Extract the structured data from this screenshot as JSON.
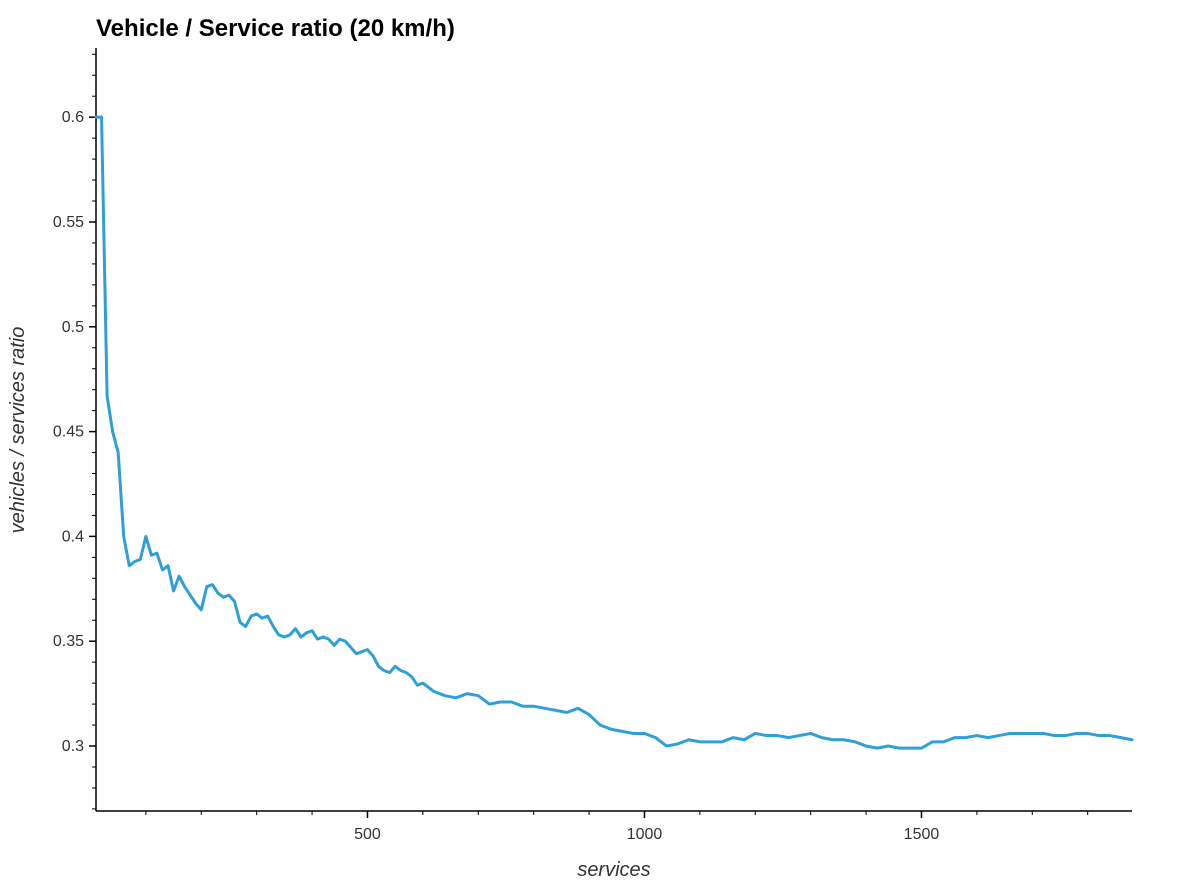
{
  "chart_data": {
    "type": "line",
    "title": "Vehicle / Service ratio (20 km/h)",
    "xlabel": "services",
    "ylabel": "vehicles / services ratio",
    "xlim": [
      10,
      1880
    ],
    "ylim": [
      0.269,
      0.633
    ],
    "xticks": [
      500,
      1000,
      1500
    ],
    "xtick_labels": [
      "500",
      "1000",
      "1500"
    ],
    "xminor": [
      100,
      200,
      300,
      400,
      600,
      700,
      800,
      900,
      1100,
      1200,
      1300,
      1400,
      1600,
      1700,
      1800
    ],
    "yticks": [
      0.3,
      0.35,
      0.4,
      0.45,
      0.5,
      0.55,
      0.6
    ],
    "ytick_labels": [
      "0.3",
      "0.35",
      "0.4",
      "0.45",
      "0.5",
      "0.55",
      "0.6"
    ],
    "yminor": [
      0.27,
      0.28,
      0.29,
      0.31,
      0.32,
      0.33,
      0.34,
      0.36,
      0.37,
      0.38,
      0.39,
      0.41,
      0.42,
      0.43,
      0.44,
      0.46,
      0.47,
      0.48,
      0.49,
      0.51,
      0.52,
      0.53,
      0.54,
      0.56,
      0.57,
      0.58,
      0.59,
      0.61,
      0.62,
      0.63
    ],
    "grid": false,
    "series": [
      {
        "color": "#2e9fd8",
        "x": [
          10,
          20,
          30,
          40,
          50,
          60,
          70,
          80,
          90,
          100,
          110,
          120,
          130,
          140,
          150,
          160,
          170,
          180,
          190,
          200,
          210,
          220,
          230,
          240,
          250,
          260,
          270,
          280,
          290,
          300,
          310,
          320,
          330,
          340,
          350,
          360,
          370,
          380,
          390,
          400,
          410,
          420,
          430,
          440,
          450,
          460,
          470,
          480,
          490,
          500,
          510,
          520,
          530,
          540,
          550,
          560,
          570,
          580,
          590,
          600,
          620,
          640,
          660,
          680,
          700,
          720,
          740,
          760,
          780,
          800,
          820,
          840,
          860,
          880,
          900,
          920,
          940,
          960,
          980,
          1000,
          1020,
          1040,
          1060,
          1080,
          1100,
          1120,
          1140,
          1160,
          1180,
          1200,
          1220,
          1240,
          1260,
          1280,
          1300,
          1320,
          1340,
          1360,
          1380,
          1400,
          1420,
          1440,
          1460,
          1480,
          1500,
          1520,
          1540,
          1560,
          1580,
          1600,
          1620,
          1640,
          1660,
          1680,
          1700,
          1720,
          1740,
          1760,
          1780,
          1800,
          1820,
          1840,
          1860,
          1880
        ],
        "y": [
          0.6,
          0.6,
          0.467,
          0.45,
          0.44,
          0.4,
          0.386,
          0.388,
          0.389,
          0.4,
          0.391,
          0.392,
          0.384,
          0.386,
          0.374,
          0.381,
          0.376,
          0.372,
          0.368,
          0.365,
          0.376,
          0.377,
          0.373,
          0.371,
          0.372,
          0.369,
          0.359,
          0.357,
          0.362,
          0.363,
          0.361,
          0.362,
          0.357,
          0.353,
          0.352,
          0.353,
          0.356,
          0.352,
          0.354,
          0.355,
          0.351,
          0.352,
          0.351,
          0.348,
          0.351,
          0.35,
          0.347,
          0.344,
          0.345,
          0.346,
          0.343,
          0.338,
          0.336,
          0.335,
          0.338,
          0.336,
          0.335,
          0.333,
          0.329,
          0.33,
          0.326,
          0.324,
          0.323,
          0.325,
          0.324,
          0.32,
          0.321,
          0.321,
          0.319,
          0.319,
          0.318,
          0.317,
          0.316,
          0.318,
          0.315,
          0.31,
          0.308,
          0.307,
          0.306,
          0.306,
          0.304,
          0.3,
          0.301,
          0.303,
          0.302,
          0.302,
          0.302,
          0.304,
          0.303,
          0.306,
          0.305,
          0.305,
          0.304,
          0.305,
          0.306,
          0.304,
          0.303,
          0.303,
          0.302,
          0.3,
          0.299,
          0.3,
          0.299,
          0.299,
          0.299,
          0.302,
          0.302,
          0.304,
          0.304,
          0.305,
          0.304,
          0.305,
          0.306,
          0.306,
          0.306,
          0.306,
          0.305,
          0.305,
          0.306,
          0.306,
          0.305,
          0.305,
          0.304,
          0.303
        ]
      }
    ]
  }
}
